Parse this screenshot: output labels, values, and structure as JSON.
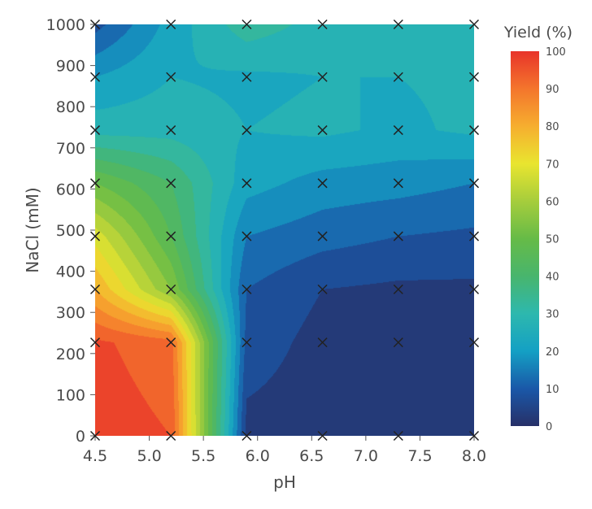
{
  "chart_data": {
    "type": "heatmap",
    "subtype": "contour",
    "xlabel": "pH",
    "ylabel": "NaCl (mM)",
    "xlim": [
      4.5,
      8.0
    ],
    "ylim": [
      0,
      1000
    ],
    "x_ticks": [
      4.5,
      5.0,
      5.5,
      6.0,
      6.5,
      7.0,
      7.5,
      8.0
    ],
    "x_tick_labels": [
      "4.5",
      "5.0",
      "5.5",
      "6.0",
      "6.5",
      "7.0",
      "7.5",
      "8.0"
    ],
    "y_ticks": [
      0,
      100,
      200,
      300,
      400,
      500,
      600,
      700,
      800,
      900,
      1000
    ],
    "y_tick_labels": [
      "0",
      "100",
      "200",
      "300",
      "400",
      "500",
      "600",
      "700",
      "800",
      "900",
      "1000"
    ],
    "grid": false,
    "design_points_x": [
      4.5,
      5.2,
      5.9,
      6.6,
      7.3,
      8.0
    ],
    "design_points_y": [
      0,
      227,
      356,
      485,
      614,
      743,
      872,
      1000
    ],
    "z_label": "Yield (%)",
    "z_values": [
      [
        98,
        95,
        3,
        2,
        2,
        2
      ],
      [
        96,
        92,
        8,
        3,
        2,
        2
      ],
      [
        80,
        55,
        10,
        5,
        4,
        4
      ],
      [
        68,
        45,
        15,
        12,
        10,
        9
      ],
      [
        50,
        40,
        22,
        18,
        17,
        15
      ],
      [
        28,
        28,
        25,
        26,
        24,
        26
      ],
      [
        20,
        25,
        24,
        25,
        25,
        26
      ],
      [
        8,
        22,
        33,
        28,
        28,
        28
      ]
    ],
    "colorbar": {
      "title": "Yield (%)",
      "min": 0,
      "max": 100,
      "ticks": [
        0,
        10,
        20,
        30,
        40,
        50,
        60,
        70,
        80,
        90,
        100
      ],
      "tick_labels": [
        "0",
        "10",
        "20",
        "30",
        "40",
        "50",
        "60",
        "70",
        "80",
        "90",
        "100"
      ],
      "placement": "right"
    },
    "colors": {
      "0": "#273068",
      "10": "#1a58a8",
      "20": "#14a0c4",
      "30": "#2db8ae",
      "40": "#48b56d",
      "50": "#66bb47",
      "60": "#a6cd3c",
      "70": "#e9e52f",
      "80": "#f6ae2f",
      "90": "#f4752c",
      "100": "#e8342a"
    }
  }
}
